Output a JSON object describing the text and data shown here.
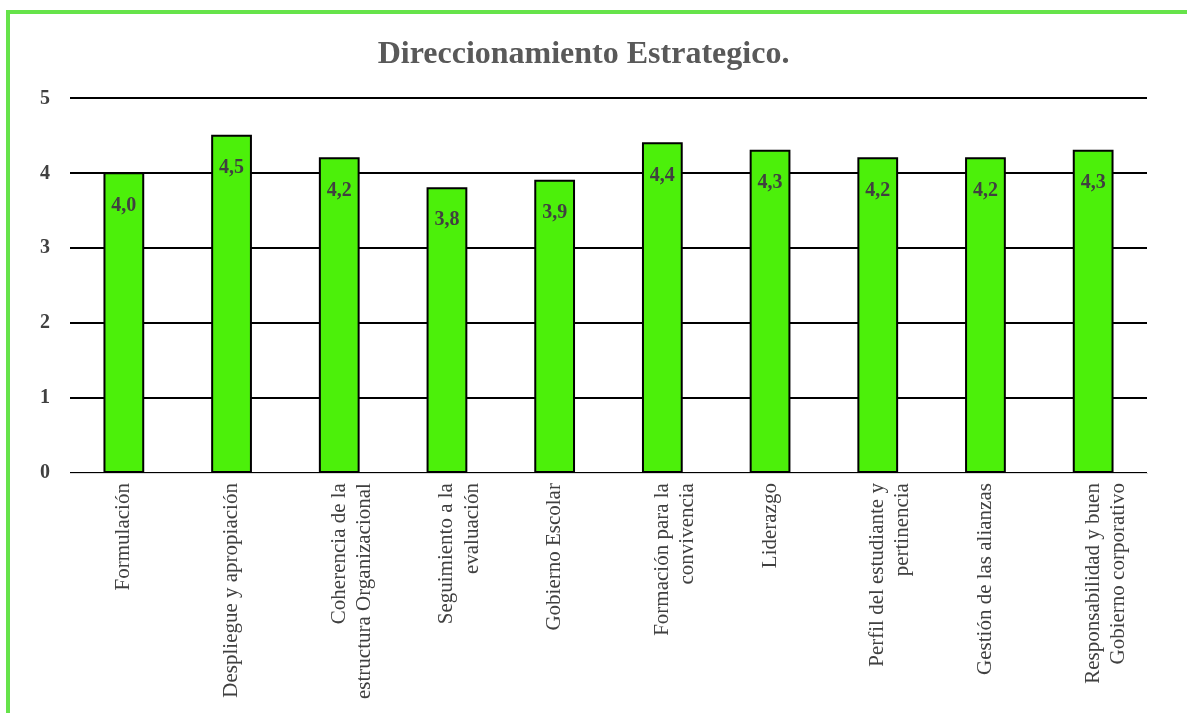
{
  "chart_data": {
    "type": "bar",
    "title": "Direccionamiento Estrategico.",
    "categories": [
      "Formulación",
      "Despliegue y apropiación",
      "Coherencia de la estructura Organizacional",
      "Seguimiento a la evaluación",
      "Gobierno Escolar",
      "Formación para la convivencia",
      "Liderazgo",
      "Perfil del estudiante y pertinencia",
      "Gestión de las alianzas",
      "Responsabilidad y buen Gobierno corporativo"
    ],
    "values": [
      4.0,
      4.5,
      4.2,
      3.8,
      3.9,
      4.4,
      4.3,
      4.2,
      4.2,
      4.3
    ],
    "value_labels": [
      "4,0",
      "4,5",
      "4,2",
      "3,8",
      "3,9",
      "4,4",
      "4,3",
      "4,2",
      "4,2",
      "4,3"
    ],
    "color": "#4cf00a",
    "ylim": [
      0,
      5
    ],
    "yticks": [
      0,
      1,
      2,
      3,
      4,
      5
    ],
    "grid": "y",
    "legend": false
  }
}
